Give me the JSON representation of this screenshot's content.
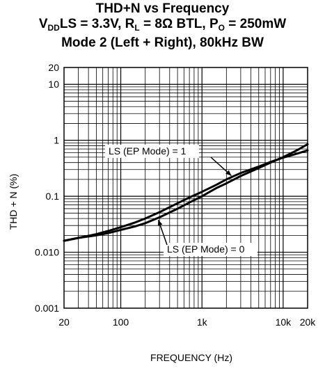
{
  "chart_data": {
    "type": "line",
    "title": "THD+N vs Frequency",
    "subtitle_parts": {
      "vdd_v": "V",
      "vdd_sub": "DD",
      "vdd_rest": "LS = 3.3V, R",
      "rl_sub": "L",
      "rl_rest": " = 8Ω BTL, P",
      "po_sub": "O",
      "po_rest": " = 250mW"
    },
    "subtitle2": "Mode 2 (Left + Right), 80kHz BW",
    "xlabel": "FREQUENCY (Hz)",
    "ylabel": "THD + N (%)",
    "xscale": "log",
    "yscale": "log",
    "xlim": [
      20,
      20000
    ],
    "ylim": [
      0.001,
      20
    ],
    "grid": true,
    "x_tick_labels": [
      {
        "value": 20,
        "label": "20"
      },
      {
        "value": 100,
        "label": "100"
      },
      {
        "value": 1000,
        "label": "1k"
      },
      {
        "value": 10000,
        "label": "10k"
      },
      {
        "value": 20000,
        "label": "20k"
      }
    ],
    "y_tick_labels": [
      {
        "value": 20,
        "label": "20"
      },
      {
        "value": 10,
        "label": "10"
      },
      {
        "value": 1,
        "label": "1"
      },
      {
        "value": 0.1,
        "label": "0.1"
      },
      {
        "value": 0.01,
        "label": "0.010"
      },
      {
        "value": 0.001,
        "label": "0.001"
      }
    ],
    "series": [
      {
        "name": "LS (EP Mode) = 1",
        "x": [
          20,
          30,
          50,
          70,
          100,
          150,
          200,
          300,
          500,
          700,
          1000,
          1500,
          2000,
          3000,
          5000,
          7000,
          10000,
          15000,
          20000
        ],
        "y": [
          0.016,
          0.018,
          0.021,
          0.024,
          0.028,
          0.034,
          0.04,
          0.052,
          0.075,
          0.095,
          0.12,
          0.16,
          0.2,
          0.26,
          0.34,
          0.41,
          0.49,
          0.58,
          0.66
        ]
      },
      {
        "name": "LS (EP Mode) = 0",
        "x": [
          20,
          30,
          50,
          70,
          100,
          150,
          200,
          300,
          500,
          700,
          1000,
          1500,
          2000,
          3000,
          5000,
          7000,
          10000,
          15000,
          20000
        ],
        "y": [
          0.016,
          0.018,
          0.02,
          0.022,
          0.025,
          0.029,
          0.033,
          0.042,
          0.06,
          0.077,
          0.1,
          0.14,
          0.17,
          0.23,
          0.32,
          0.4,
          0.5,
          0.67,
          0.85
        ]
      }
    ]
  }
}
